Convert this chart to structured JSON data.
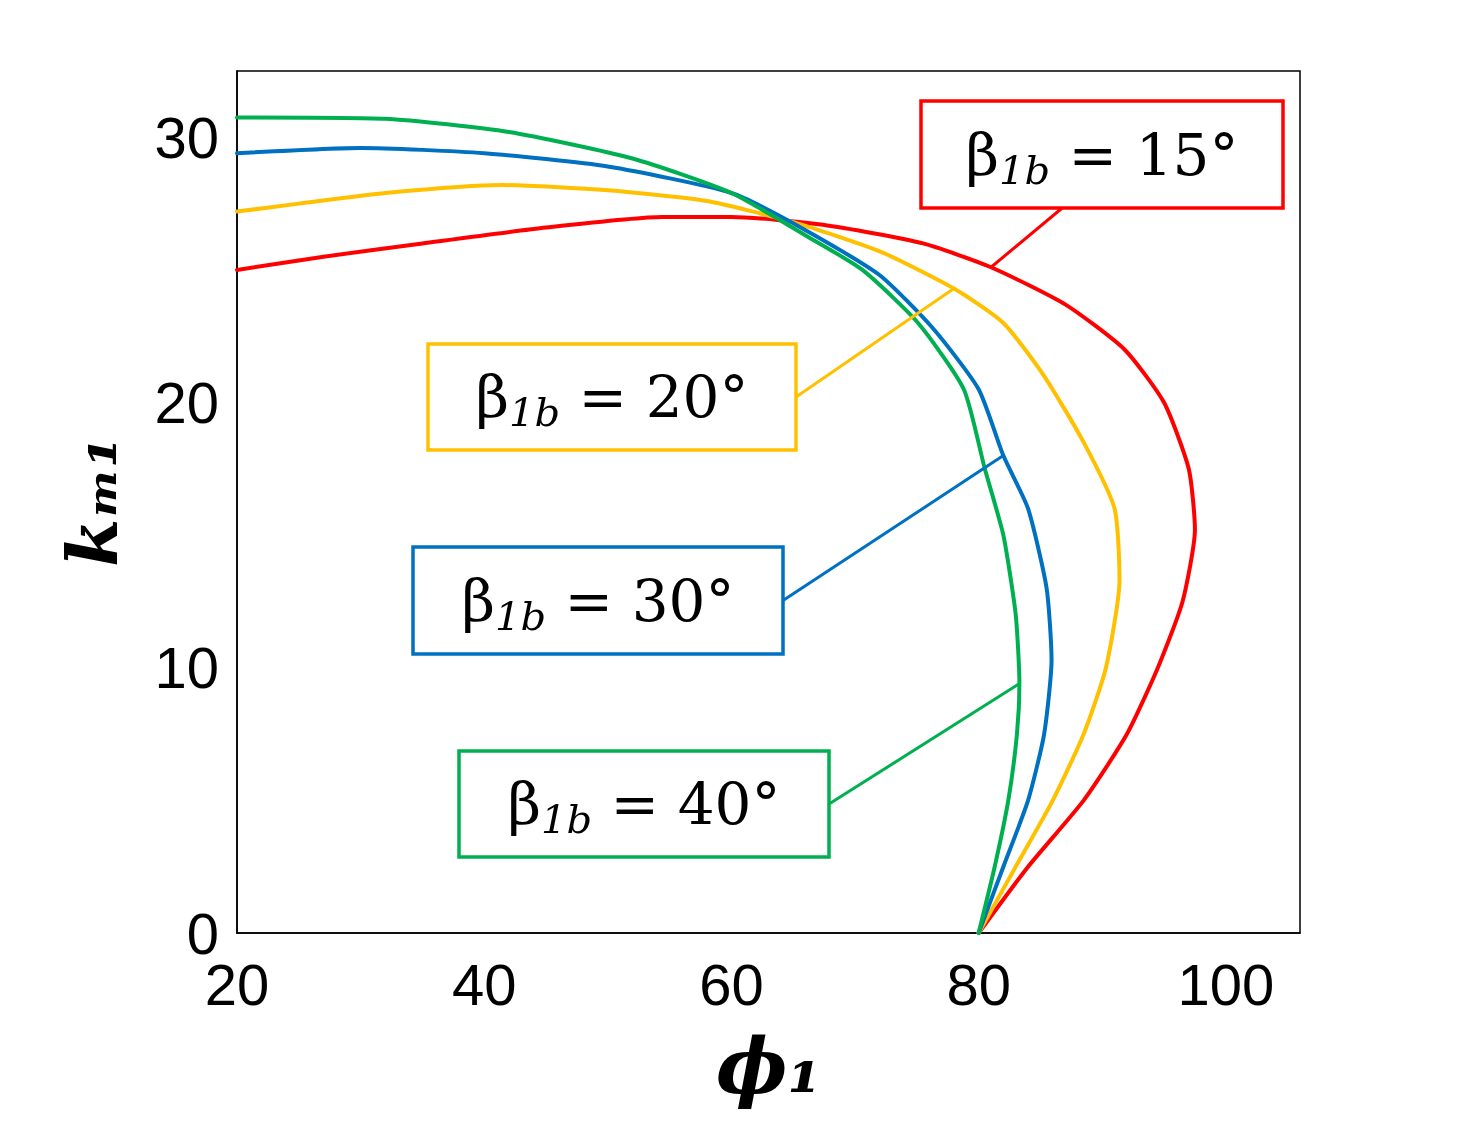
{
  "chart_data": {
    "type": "line",
    "xlabel": "ϕ₁",
    "ylabel": "kₘ₁",
    "xlim": [
      20,
      106
    ],
    "xticks": [
      20,
      40,
      60,
      80,
      100
    ],
    "ylim": [
      0,
      32.5
    ],
    "yticks": [
      0,
      10,
      20,
      30
    ],
    "grid": false,
    "marker": "none",
    "series": [
      {
        "color": "#ff0000",
        "x": [
          80,
          84,
          88.5,
          92,
          94.5,
          96.5,
          97.5,
          97,
          95,
          91.8,
          87,
          81,
          75.5,
          67.4,
          60,
          54.4,
          45,
          35,
          27,
          20
        ],
        "values": [
          0,
          2.5,
          5,
          7.5,
          10,
          12.5,
          15.2,
          17.5,
          20,
          22,
          23.7,
          25.1,
          26,
          26.7,
          27,
          27,
          26.6,
          26,
          25.5,
          25
        ]
      },
      {
        "color": "#ffc000",
        "x": [
          80,
          83,
          86,
          88.5,
          90.3,
          91.4,
          91,
          88.5,
          85.3,
          82,
          78,
          72,
          65,
          58,
          50,
          41.4,
          32,
          25,
          20
        ],
        "values": [
          0,
          2.5,
          5,
          7.5,
          10,
          13.3,
          16,
          18.5,
          21,
          23,
          24.3,
          25.7,
          26.8,
          27.6,
          28,
          28.2,
          27.9,
          27.5,
          27.2
        ]
      },
      {
        "color": "#0070c0",
        "x": [
          80,
          82,
          84,
          85.3,
          85.9,
          85.5,
          84,
          82,
          80,
          76.3,
          72,
          66,
          60,
          50,
          40,
          30,
          20
        ],
        "values": [
          0,
          2.5,
          5,
          7.5,
          10.3,
          13,
          16,
          18,
          20.5,
          22.8,
          24.8,
          26.5,
          27.9,
          28.9,
          29.4,
          29.6,
          29.4
        ]
      },
      {
        "color": "#00b050",
        "x": [
          80,
          81.3,
          82.4,
          83.1,
          83.3,
          83,
          82,
          80.5,
          78.8,
          75.1,
          70.6,
          66,
          60,
          52,
          42,
          32,
          20
        ],
        "values": [
          0,
          2.5,
          5,
          7.5,
          9.4,
          12,
          15,
          17.5,
          20.5,
          23,
          25,
          26.3,
          27.9,
          29.2,
          30.2,
          30.7,
          30.75
        ]
      }
    ],
    "annotations": [
      {
        "text": "β$_{1b}$ = 15°",
        "x": 81,
        "y": 25.1
      },
      {
        "text": "β$_{1b}$ = 20°",
        "x": 78,
        "y": 24.3
      },
      {
        "text": "β$_{1b}$ = 30°",
        "x": 82,
        "y": 18
      },
      {
        "text": "β$_{1b}$ = 40°",
        "x": 83.3,
        "y": 9.4
      }
    ]
  }
}
